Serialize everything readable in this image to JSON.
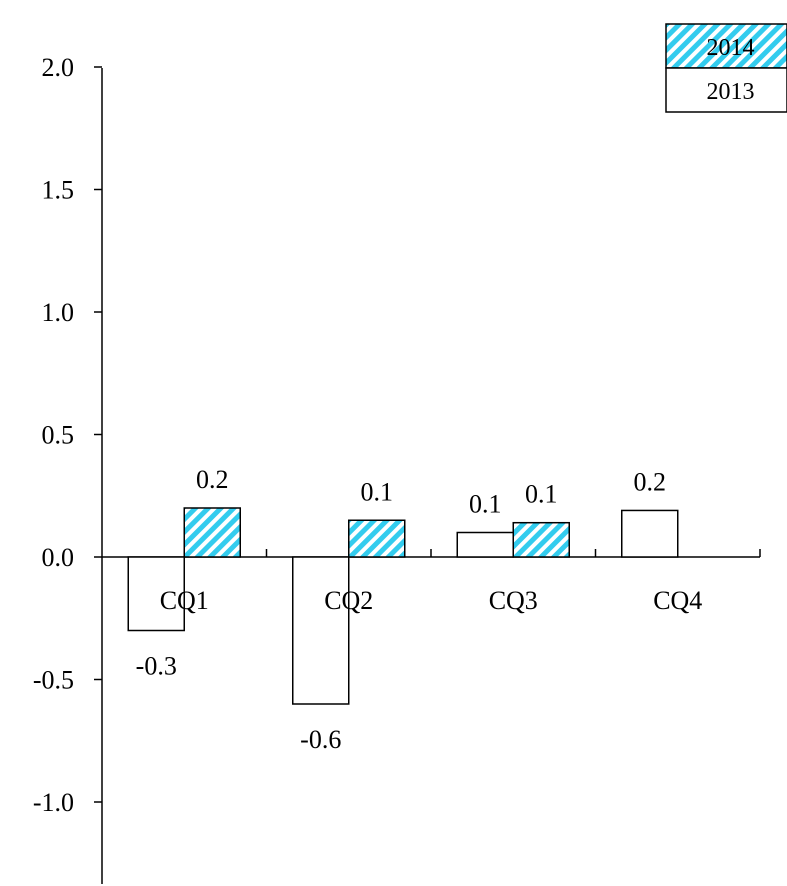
{
  "chart_data": {
    "type": "bar",
    "title": "",
    "xlabel": "",
    "ylabel": "",
    "categories": [
      "CQ1",
      "CQ2",
      "CQ3",
      "CQ4"
    ],
    "ylim": [
      -1.3,
      2.0
    ],
    "yticks": [
      2.0,
      1.5,
      1.0,
      0.5,
      0.0,
      -0.5,
      -1.0
    ],
    "ytick_labels": [
      "2.0",
      "1.5",
      "1.0",
      "0.5",
      "0.0",
      "-0.5",
      "-1.0"
    ],
    "grid": false,
    "legend_position": "top-right",
    "series": [
      {
        "name": "2013",
        "values": [
          -0.3,
          -0.6,
          0.1,
          0.19
        ],
        "labels": [
          "-0.3",
          "-0.6",
          "0.1",
          "0.2"
        ],
        "color": "#ffffff",
        "pattern": "solid"
      },
      {
        "name": "2014",
        "values": [
          0.2,
          0.15,
          0.14,
          null
        ],
        "labels": [
          "0.2",
          "0.1",
          "0.1",
          ""
        ],
        "color": "#33ccee",
        "pattern": "diagonal-stripes"
      }
    ]
  }
}
